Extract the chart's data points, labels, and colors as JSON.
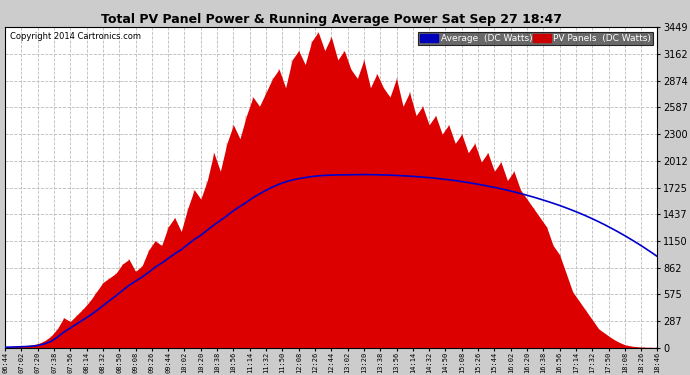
{
  "title": "Total PV Panel Power & Running Average Power Sat Sep 27 18:47",
  "copyright": "Copyright 2014 Cartronics.com",
  "legend_avg_bg": "#0000bb",
  "legend_pv_bg": "#cc0000",
  "pv_fill_color": "#dd0000",
  "avg_line_color": "#0000cc",
  "bg_color": "#ffffff",
  "plot_bg_color": "#ffffff",
  "grid_color": "#bbbbbb",
  "outer_bg": "#cccccc",
  "ymin": 0.0,
  "ymax": 3449.3,
  "yticks": [
    0.0,
    287.4,
    574.9,
    862.3,
    1149.8,
    1437.2,
    1724.6,
    2012.1,
    2299.5,
    2587.0,
    2874.4,
    3161.8,
    3449.3
  ],
  "xtick_labels": [
    "06:44",
    "07:02",
    "07:20",
    "07:38",
    "07:56",
    "08:14",
    "08:32",
    "08:50",
    "09:08",
    "09:26",
    "09:44",
    "10:02",
    "10:20",
    "10:38",
    "10:56",
    "11:14",
    "11:32",
    "11:50",
    "12:08",
    "12:26",
    "12:44",
    "13:02",
    "13:20",
    "13:38",
    "13:56",
    "14:14",
    "14:32",
    "14:50",
    "15:08",
    "15:26",
    "15:44",
    "16:02",
    "16:20",
    "16:38",
    "16:56",
    "17:14",
    "17:32",
    "17:50",
    "18:08",
    "18:26",
    "18:46"
  ],
  "pv_data": [
    5,
    8,
    12,
    18,
    25,
    40,
    70,
    120,
    200,
    320,
    280,
    350,
    420,
    500,
    600,
    700,
    750,
    800,
    900,
    950,
    820,
    880,
    1050,
    1150,
    1100,
    1300,
    1400,
    1250,
    1500,
    1700,
    1600,
    1800,
    2100,
    1900,
    2200,
    2400,
    2250,
    2500,
    2700,
    2600,
    2750,
    2900,
    3000,
    2800,
    3100,
    3200,
    3050,
    3300,
    3400,
    3200,
    3350,
    3100,
    3200,
    3000,
    2900,
    3100,
    2800,
    2950,
    2800,
    2700,
    2900,
    2600,
    2750,
    2500,
    2600,
    2400,
    2500,
    2300,
    2400,
    2200,
    2300,
    2100,
    2200,
    2000,
    2100,
    1900,
    2000,
    1800,
    1900,
    1700,
    1600,
    1500,
    1400,
    1300,
    1100,
    1000,
    800,
    600,
    500,
    400,
    300,
    200,
    150,
    100,
    60,
    30,
    15,
    8,
    4,
    2,
    1
  ],
  "avg_data": [
    3,
    5,
    7,
    10,
    14,
    22,
    38,
    65,
    110,
    165,
    210,
    255,
    300,
    345,
    395,
    450,
    505,
    558,
    615,
    670,
    715,
    760,
    810,
    865,
    910,
    960,
    1010,
    1055,
    1110,
    1165,
    1210,
    1265,
    1320,
    1370,
    1420,
    1475,
    1520,
    1565,
    1615,
    1655,
    1695,
    1730,
    1760,
    1785,
    1805,
    1820,
    1832,
    1842,
    1850,
    1855,
    1858,
    1860,
    1861,
    1862,
    1863,
    1864,
    1863,
    1862,
    1860,
    1858,
    1855,
    1851,
    1847,
    1842,
    1837,
    1831,
    1824,
    1816,
    1808,
    1799,
    1789,
    1778,
    1766,
    1753,
    1740,
    1726,
    1711,
    1695,
    1678,
    1660,
    1641,
    1621,
    1600,
    1578,
    1555,
    1531,
    1505,
    1478,
    1450,
    1420,
    1388,
    1355,
    1320,
    1283,
    1245,
    1205,
    1163,
    1120,
    1075,
    1028,
    980
  ]
}
